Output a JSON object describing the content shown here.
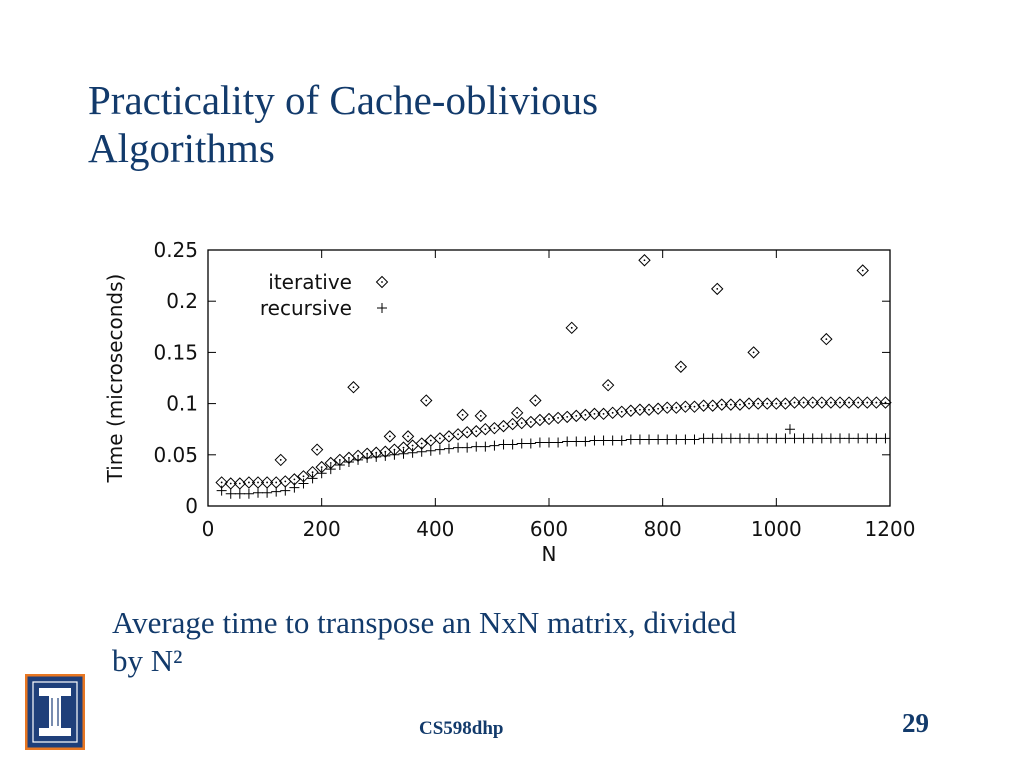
{
  "slide": {
    "title_lines": [
      "Practicality of Cache-oblivious",
      "Algorithms"
    ],
    "caption_line1": "Average time to transpose an NxN matrix, divided",
    "caption_line2": "by N²",
    "footer_course": "CS598dhp",
    "slide_number": "29",
    "colors": {
      "title": "#123a6b",
      "logo_orange": "#e87722",
      "logo_blue": "#1f3f7a"
    },
    "logo_icon": "university-of-illinois-logo-icon"
  },
  "chart_data": {
    "type": "scatter",
    "title": "",
    "xlabel": "N",
    "ylabel": "Time (microseconds)",
    "xlim": [
      0,
      1200
    ],
    "ylim": [
      0,
      0.25
    ],
    "xticks": [
      0,
      200,
      400,
      600,
      800,
      1000,
      1200
    ],
    "xtick_labels": [
      "0",
      "200",
      "400",
      "600",
      "800",
      "1000",
      "1200"
    ],
    "yticks": [
      0,
      0.05,
      0.1,
      0.15,
      0.2,
      0.25
    ],
    "ytick_labels": [
      "0",
      "0.05",
      "0.1",
      "0.15",
      "0.2",
      "0.25"
    ],
    "legend_position": "top-left",
    "series": [
      {
        "name": "iterative",
        "marker": "diamond",
        "x": [
          24,
          40,
          56,
          72,
          88,
          104,
          120,
          136,
          152,
          168,
          184,
          200,
          216,
          232,
          248,
          264,
          280,
          296,
          312,
          328,
          344,
          360,
          376,
          392,
          408,
          424,
          440,
          456,
          472,
          488,
          504,
          520,
          536,
          552,
          568,
          584,
          600,
          616,
          632,
          648,
          664,
          680,
          696,
          712,
          728,
          744,
          760,
          776,
          792,
          808,
          824,
          840,
          856,
          872,
          888,
          904,
          920,
          936,
          952,
          968,
          984,
          1000,
          1016,
          1032,
          1048,
          1064,
          1080,
          1096,
          1112,
          1128,
          1144,
          1160,
          1176,
          1192,
          128,
          192,
          256,
          320,
          352,
          384,
          448,
          480,
          544,
          576,
          640,
          704,
          768,
          832,
          896,
          960,
          1088,
          1152
        ],
        "y": [
          0.023,
          0.022,
          0.022,
          0.023,
          0.023,
          0.023,
          0.023,
          0.024,
          0.026,
          0.029,
          0.033,
          0.038,
          0.042,
          0.045,
          0.047,
          0.049,
          0.051,
          0.052,
          0.053,
          0.055,
          0.057,
          0.059,
          0.061,
          0.064,
          0.066,
          0.068,
          0.07,
          0.072,
          0.073,
          0.075,
          0.076,
          0.078,
          0.08,
          0.081,
          0.082,
          0.084,
          0.085,
          0.086,
          0.087,
          0.088,
          0.089,
          0.09,
          0.09,
          0.091,
          0.092,
          0.093,
          0.094,
          0.094,
          0.095,
          0.096,
          0.096,
          0.097,
          0.097,
          0.098,
          0.098,
          0.099,
          0.099,
          0.099,
          0.1,
          0.1,
          0.1,
          0.1,
          0.1,
          0.101,
          0.101,
          0.101,
          0.101,
          0.101,
          0.101,
          0.101,
          0.101,
          0.101,
          0.101,
          0.101,
          0.045,
          0.055,
          0.116,
          0.068,
          0.068,
          0.103,
          0.089,
          0.088,
          0.091,
          0.103,
          0.174,
          0.118,
          0.24,
          0.136,
          0.212,
          0.15,
          0.163,
          0.23
        ]
      },
      {
        "name": "recursive",
        "marker": "plus",
        "x": [
          24,
          40,
          56,
          72,
          88,
          104,
          120,
          136,
          152,
          168,
          184,
          200,
          216,
          232,
          248,
          264,
          280,
          296,
          312,
          328,
          344,
          360,
          376,
          392,
          408,
          424,
          440,
          456,
          472,
          488,
          504,
          520,
          536,
          552,
          568,
          584,
          600,
          616,
          632,
          648,
          664,
          680,
          696,
          712,
          728,
          744,
          760,
          776,
          792,
          808,
          824,
          840,
          856,
          872,
          888,
          904,
          920,
          936,
          952,
          968,
          984,
          1000,
          1016,
          1032,
          1048,
          1064,
          1080,
          1096,
          1112,
          1128,
          1144,
          1160,
          1176,
          1192,
          1024
        ],
        "y": [
          0.015,
          0.012,
          0.012,
          0.012,
          0.013,
          0.013,
          0.014,
          0.015,
          0.018,
          0.022,
          0.027,
          0.032,
          0.036,
          0.04,
          0.043,
          0.045,
          0.047,
          0.048,
          0.049,
          0.05,
          0.051,
          0.052,
          0.053,
          0.054,
          0.055,
          0.056,
          0.057,
          0.057,
          0.058,
          0.058,
          0.059,
          0.06,
          0.06,
          0.061,
          0.061,
          0.062,
          0.062,
          0.062,
          0.063,
          0.063,
          0.063,
          0.064,
          0.064,
          0.064,
          0.064,
          0.065,
          0.065,
          0.065,
          0.065,
          0.065,
          0.065,
          0.065,
          0.065,
          0.066,
          0.066,
          0.066,
          0.066,
          0.066,
          0.066,
          0.066,
          0.066,
          0.066,
          0.066,
          0.066,
          0.066,
          0.066,
          0.066,
          0.066,
          0.066,
          0.066,
          0.066,
          0.066,
          0.066,
          0.066,
          0.075
        ]
      }
    ]
  }
}
